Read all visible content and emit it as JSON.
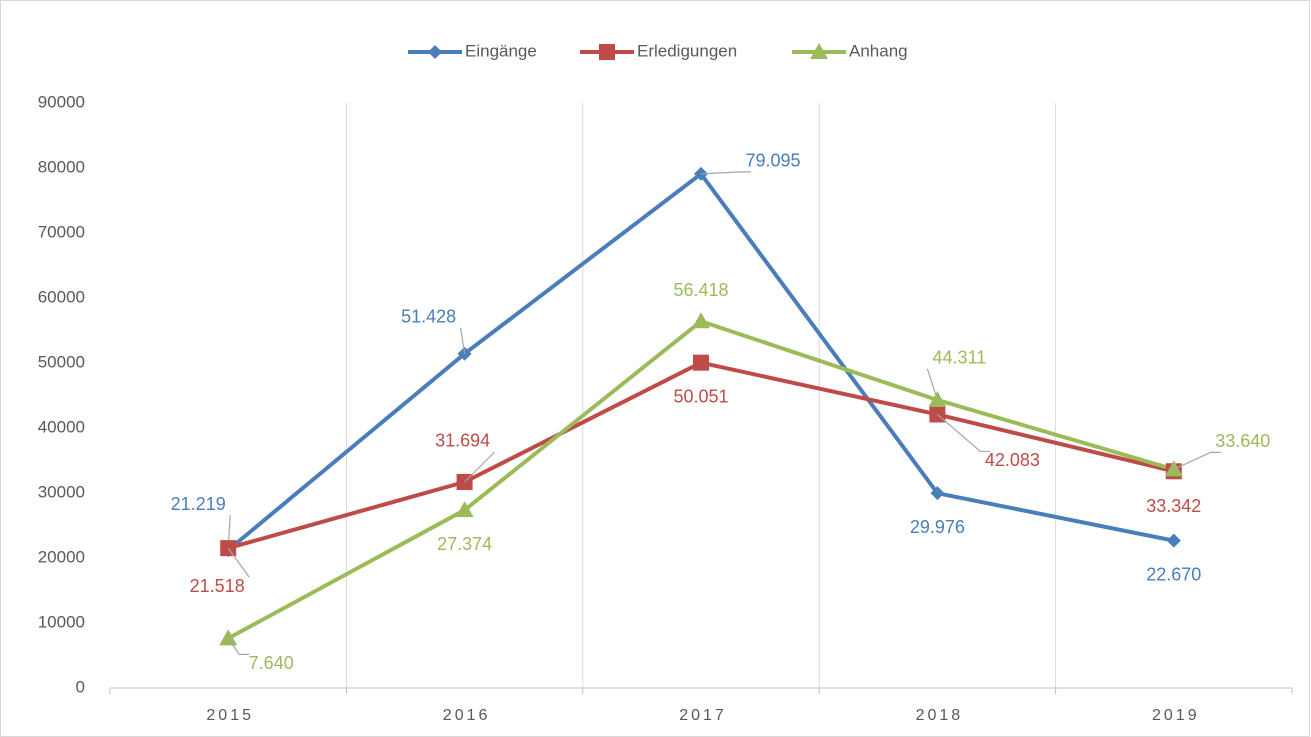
{
  "chart_data": {
    "type": "line",
    "categories": [
      "2015",
      "2016",
      "2017",
      "2018",
      "2019"
    ],
    "series": [
      {
        "name": "Eingänge",
        "color": "#4a7ebb",
        "values": [
          21219,
          51428,
          79095,
          29976,
          22670
        ],
        "value_labels": [
          "21.219",
          "51.428",
          "79.095",
          "29.976",
          "22.670"
        ]
      },
      {
        "name": "Erledigungen",
        "color": "#be4b48",
        "values": [
          21518,
          31694,
          50051,
          42083,
          33342
        ],
        "value_labels": [
          "21.518",
          "31.694",
          "50.051",
          "42.083",
          "33.342"
        ]
      },
      {
        "name": "Anhang",
        "color": "#9bbb59",
        "values": [
          7640,
          27374,
          56418,
          44311,
          33640
        ],
        "value_labels": [
          "7.640",
          "27.374",
          "56.418",
          "44.311",
          "33.640"
        ]
      }
    ],
    "ylim": [
      0,
      90000
    ],
    "yticks": [
      0,
      10000,
      20000,
      30000,
      40000,
      50000,
      60000,
      70000,
      80000,
      90000
    ],
    "grid": true,
    "legend": "top"
  }
}
